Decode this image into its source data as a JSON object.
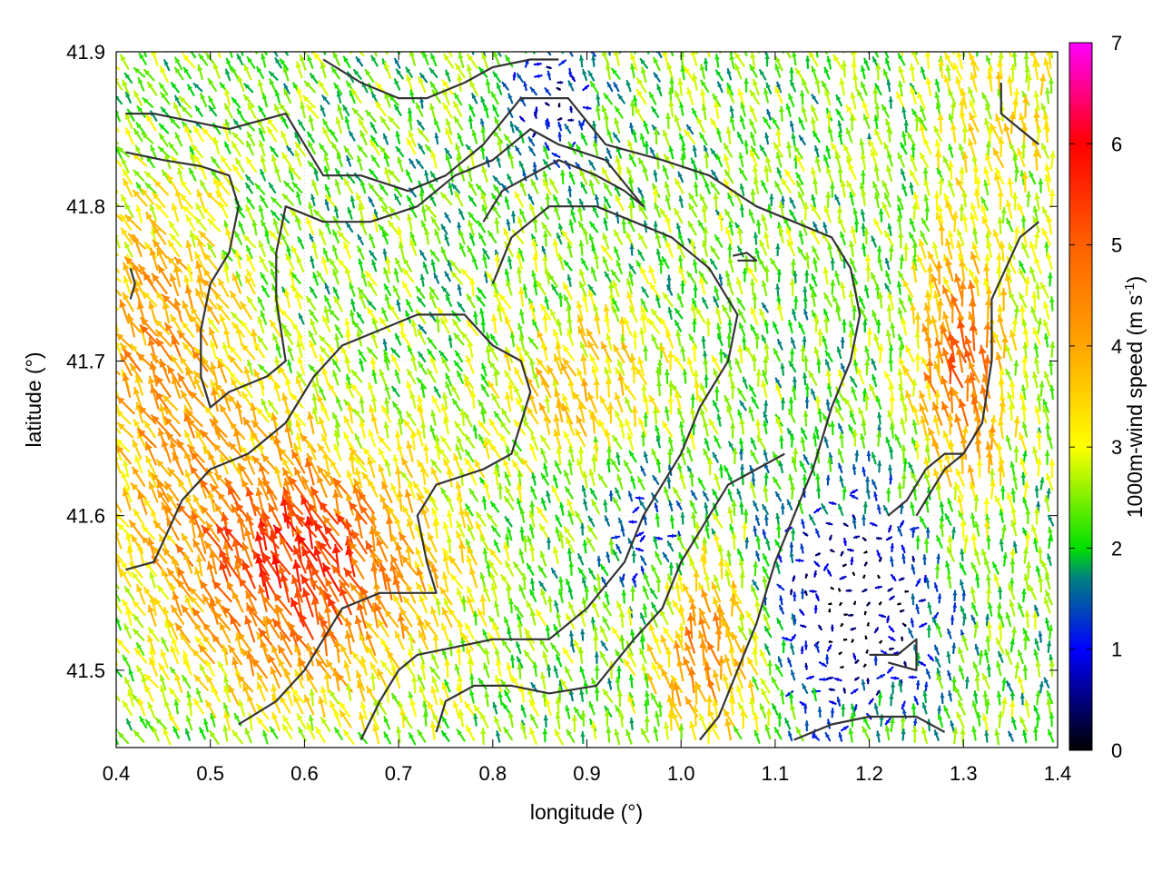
{
  "chart_data": {
    "type": "vector-field",
    "xlabel": "longitude (°)",
    "ylabel": "latitude (°)",
    "colorbar_label": "1000m-wind speed (m s",
    "colorbar_label_sup": "-1",
    "colorbar_label_close": ")",
    "xlim": [
      0.4,
      1.4
    ],
    "ylim": [
      41.45,
      41.9
    ],
    "x_ticks": [
      "0.4",
      "0.5",
      "0.6",
      "0.7",
      "0.8",
      "0.9",
      "1.0",
      "1.1",
      "1.2",
      "1.3",
      "1.4"
    ],
    "y_ticks": [
      "41.5",
      "41.6",
      "41.7",
      "41.8",
      "41.9"
    ],
    "y_tick_values": [
      41.5,
      41.6,
      41.7,
      41.8,
      41.9
    ],
    "color_range": [
      0,
      7
    ],
    "color_ticks": [
      "0",
      "1",
      "2",
      "3",
      "4",
      "5",
      "6",
      "7"
    ],
    "colormap": [
      {
        "v": 0,
        "c": "#000000"
      },
      {
        "v": 1,
        "c": "#0000ff"
      },
      {
        "v": 1.7,
        "c": "#008080"
      },
      {
        "v": 2,
        "c": "#00e000"
      },
      {
        "v": 3,
        "c": "#ffff00"
      },
      {
        "v": 4,
        "c": "#ffa500"
      },
      {
        "v": 5,
        "c": "#ff6000"
      },
      {
        "v": 6,
        "c": "#ff0000"
      },
      {
        "v": 7,
        "c": "#ff00ff"
      }
    ],
    "grid": true,
    "contours": [
      [
        [
          0.41,
          41.835
        ],
        [
          0.45,
          41.83
        ],
        [
          0.49,
          41.826
        ],
        [
          0.52,
          41.82
        ],
        [
          0.53,
          41.8
        ],
        [
          0.52,
          41.77
        ],
        [
          0.5,
          41.75
        ],
        [
          0.49,
          41.72
        ],
        [
          0.49,
          41.69
        ],
        [
          0.5,
          41.67
        ],
        [
          0.52,
          41.68
        ],
        [
          0.56,
          41.69
        ],
        [
          0.58,
          41.7
        ],
        [
          0.57,
          41.74
        ],
        [
          0.57,
          41.77
        ],
        [
          0.58,
          41.8
        ],
        [
          0.62,
          41.79
        ],
        [
          0.67,
          41.79
        ],
        [
          0.72,
          41.8
        ],
        [
          0.76,
          41.82
        ],
        [
          0.8,
          41.83
        ],
        [
          0.84,
          41.85
        ],
        [
          0.87,
          41.84
        ],
        [
          0.92,
          41.83
        ],
        [
          0.96,
          41.8
        ],
        [
          0.94,
          41.81
        ],
        [
          0.91,
          41.82
        ],
        [
          0.87,
          41.83
        ],
        [
          0.84,
          41.82
        ],
        [
          0.81,
          41.81
        ],
        [
          0.79,
          41.79
        ]
      ],
      [
        [
          0.41,
          41.86
        ],
        [
          0.44,
          41.86
        ],
        [
          0.48,
          41.855
        ],
        [
          0.52,
          41.85
        ],
        [
          0.55,
          41.855
        ],
        [
          0.58,
          41.86
        ],
        [
          0.6,
          41.84
        ],
        [
          0.62,
          41.82
        ],
        [
          0.66,
          41.82
        ],
        [
          0.71,
          41.81
        ],
        [
          0.75,
          41.82
        ],
        [
          0.79,
          41.84
        ],
        [
          0.83,
          41.87
        ],
        [
          0.88,
          41.87
        ],
        [
          0.92,
          41.84
        ],
        [
          0.98,
          41.83
        ],
        [
          1.03,
          41.82
        ],
        [
          1.08,
          41.8
        ],
        [
          1.12,
          41.79
        ],
        [
          1.16,
          41.78
        ],
        [
          1.18,
          41.76
        ],
        [
          1.19,
          41.73
        ],
        [
          1.18,
          41.7
        ],
        [
          1.16,
          41.67
        ],
        [
          1.14,
          41.63
        ],
        [
          1.12,
          41.6
        ],
        [
          1.1,
          41.57
        ],
        [
          1.08,
          41.53
        ],
        [
          1.06,
          41.5
        ],
        [
          1.04,
          41.47
        ],
        [
          1.02,
          41.455
        ]
      ],
      [
        [
          0.41,
          41.565
        ],
        [
          0.44,
          41.57
        ],
        [
          0.47,
          41.61
        ],
        [
          0.5,
          41.63
        ],
        [
          0.54,
          41.64
        ],
        [
          0.58,
          41.66
        ],
        [
          0.61,
          41.69
        ],
        [
          0.64,
          41.71
        ],
        [
          0.68,
          41.72
        ],
        [
          0.72,
          41.73
        ],
        [
          0.74,
          41.73
        ],
        [
          0.77,
          41.73
        ],
        [
          0.8,
          41.71
        ],
        [
          0.83,
          41.7
        ],
        [
          0.84,
          41.68
        ],
        [
          0.82,
          41.64
        ],
        [
          0.79,
          41.63
        ],
        [
          0.74,
          41.62
        ],
        [
          0.72,
          41.6
        ],
        [
          0.73,
          41.57
        ],
        [
          0.74,
          41.55
        ],
        [
          0.71,
          41.55
        ],
        [
          0.68,
          41.55
        ],
        [
          0.64,
          41.54
        ],
        [
          0.62,
          41.52
        ],
        [
          0.6,
          41.5
        ],
        [
          0.57,
          41.48
        ],
        [
          0.53,
          41.465
        ]
      ],
      [
        [
          0.66,
          41.455
        ],
        [
          0.68,
          41.48
        ],
        [
          0.7,
          41.5
        ],
        [
          0.72,
          41.51
        ],
        [
          0.76,
          41.515
        ],
        [
          0.8,
          41.52
        ],
        [
          0.86,
          41.52
        ],
        [
          0.9,
          41.54
        ],
        [
          0.94,
          41.57
        ],
        [
          0.96,
          41.6
        ],
        [
          0.98,
          41.62
        ],
        [
          1.0,
          41.64
        ],
        [
          1.02,
          41.67
        ],
        [
          1.05,
          41.7
        ],
        [
          1.06,
          41.73
        ],
        [
          1.03,
          41.76
        ],
        [
          0.99,
          41.78
        ],
        [
          0.95,
          41.79
        ],
        [
          0.91,
          41.8
        ],
        [
          0.86,
          41.8
        ],
        [
          0.82,
          41.78
        ],
        [
          0.8,
          41.75
        ]
      ],
      [
        [
          0.74,
          41.46
        ],
        [
          0.75,
          41.48
        ],
        [
          0.78,
          41.49
        ],
        [
          0.82,
          41.49
        ],
        [
          0.86,
          41.485
        ],
        [
          0.91,
          41.49
        ],
        [
          0.95,
          41.52
        ],
        [
          0.98,
          41.54
        ],
        [
          1.0,
          41.57
        ],
        [
          1.03,
          41.6
        ],
        [
          1.05,
          41.62
        ],
        [
          1.08,
          41.63
        ],
        [
          1.11,
          41.64
        ]
      ],
      [
        [
          1.12,
          41.455
        ],
        [
          1.16,
          41.465
        ],
        [
          1.2,
          41.47
        ],
        [
          1.25,
          41.47
        ],
        [
          1.28,
          41.46
        ]
      ],
      [
        [
          1.2,
          41.51
        ],
        [
          1.23,
          41.51
        ],
        [
          1.25,
          41.52
        ],
        [
          1.25,
          41.5
        ],
        [
          1.22,
          41.505
        ]
      ],
      [
        [
          1.25,
          41.6
        ],
        [
          1.28,
          41.63
        ],
        [
          1.3,
          41.64
        ],
        [
          1.32,
          41.66
        ],
        [
          1.33,
          41.7
        ],
        [
          1.33,
          41.74
        ],
        [
          1.36,
          41.78
        ],
        [
          1.38,
          41.79
        ]
      ],
      [
        [
          1.22,
          41.6
        ],
        [
          1.24,
          41.61
        ],
        [
          1.26,
          41.63
        ],
        [
          1.28,
          41.64
        ],
        [
          1.3,
          41.64
        ]
      ],
      [
        [
          1.34,
          41.88
        ],
        [
          1.34,
          41.86
        ],
        [
          1.36,
          41.85
        ],
        [
          1.38,
          41.84
        ]
      ],
      [
        [
          0.62,
          41.895
        ],
        [
          0.66,
          41.88
        ],
        [
          0.7,
          41.87
        ],
        [
          0.73,
          41.87
        ],
        [
          0.77,
          41.88
        ],
        [
          0.8,
          41.89
        ],
        [
          0.84,
          41.895
        ],
        [
          0.87,
          41.895
        ]
      ],
      [
        [
          1.06,
          41.765
        ],
        [
          1.08,
          41.765
        ],
        [
          1.07,
          41.77
        ],
        [
          1.055,
          41.768
        ]
      ],
      [
        [
          0.415,
          41.76
        ],
        [
          0.42,
          41.75
        ],
        [
          0.415,
          41.74
        ]
      ]
    ]
  }
}
